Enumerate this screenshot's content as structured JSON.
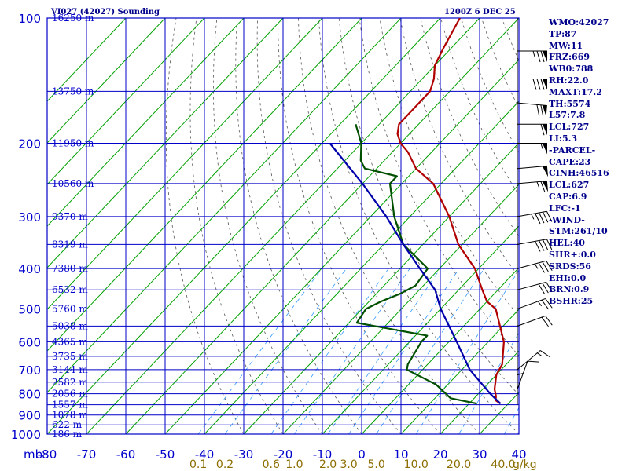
{
  "header": {
    "station": "VI027 (42027) Sounding",
    "time": "1200Z  6 DEC 25"
  },
  "stats": [
    "WMO:42027",
    "TP:87",
    "MW:11",
    "FRZ:669",
    "WB0:788",
    "RH:22.0",
    "MAXT:17.2",
    "TH:5574",
    "L57:7.8",
    "LCL:727",
    "LI:5.3",
    "-PARCEL-",
    "CAPE:23",
    "CINH:46516",
    "LCL:627",
    "CAP:6.9",
    "LFC:-1",
    "-WIND-",
    "STM:261/10",
    "HEL:40",
    "SHR+:0.0",
    "SRDS:56",
    "EHI:0.0",
    "BRN:0.9",
    "BSHR:25"
  ],
  "colors": {
    "grid": "#0000c8",
    "isotherm": "#00a000",
    "temperature": "#b00000",
    "dewpoint": "#005000",
    "parcel": "#0000aa",
    "mixing_ratio": "#3399ff",
    "adiabat": "#555555",
    "text": "#00008b",
    "mixlabel": "#8b6d00"
  },
  "chart_data": {
    "type": "line",
    "title": "VI027 (42027) Sounding",
    "xlabel": "",
    "ylabel": "mb",
    "x_unit": "C",
    "ylog": true,
    "xlim": [
      -80,
      40
    ],
    "ylim": [
      1000,
      100
    ],
    "pressure_ticks": [
      100,
      200,
      300,
      400,
      500,
      600,
      700,
      800,
      900,
      1000
    ],
    "temp_ticks": [
      -80,
      -70,
      -60,
      -50,
      -40,
      -30,
      -20,
      -10,
      0,
      10,
      20,
      30,
      40
    ],
    "y_axis_unit_label": "mb",
    "mixing_ratio_labels": [
      "0.1",
      "0.2",
      "0.6",
      "1.0",
      "2.0",
      "3.0",
      "5.0",
      "10.0",
      "20.0",
      "40.0"
    ],
    "mixing_ratio_unit": "g/kg",
    "height_labels": [
      {
        "p": 100,
        "label": "16250 m"
      },
      {
        "p": 150,
        "label": "13750 m"
      },
      {
        "p": 200,
        "label": "11950 m"
      },
      {
        "p": 250,
        "label": "10560 m"
      },
      {
        "p": 300,
        "label": "9370 m"
      },
      {
        "p": 350,
        "label": "8319 m"
      },
      {
        "p": 400,
        "label": "7380 m"
      },
      {
        "p": 450,
        "label": "6532 m"
      },
      {
        "p": 500,
        "label": "5760 m"
      },
      {
        "p": 550,
        "label": "5038 m"
      },
      {
        "p": 600,
        "label": "4365 m"
      },
      {
        "p": 650,
        "label": "3735 m"
      },
      {
        "p": 700,
        "label": "3144 m"
      },
      {
        "p": 750,
        "label": "2582 m"
      },
      {
        "p": 800,
        "label": "2056 m"
      },
      {
        "p": 850,
        "label": "1557 m"
      },
      {
        "p": 900,
        "label": "1078 m"
      },
      {
        "p": 950,
        "label": "622 m"
      },
      {
        "p": 1000,
        "label": "186 m"
      }
    ],
    "series": [
      {
        "name": "Temperature",
        "points": [
          [
            845,
            28
          ],
          [
            830,
            26
          ],
          [
            810,
            25
          ],
          [
            780,
            23
          ],
          [
            720,
            20
          ],
          [
            680,
            19
          ],
          [
            600,
            14
          ],
          [
            500,
            4
          ],
          [
            480,
            0
          ],
          [
            450,
            -4
          ],
          [
            400,
            -11
          ],
          [
            350,
            -21
          ],
          [
            300,
            -30
          ],
          [
            250,
            -42
          ],
          [
            230,
            -50
          ],
          [
            210,
            -56
          ],
          [
            200,
            -60
          ],
          [
            190,
            -63
          ],
          [
            180,
            -65
          ],
          [
            165,
            -65
          ],
          [
            150,
            -65
          ],
          [
            140,
            -67
          ],
          [
            130,
            -70
          ],
          [
            118,
            -72
          ],
          [
            100,
            -75
          ]
        ]
      },
      {
        "name": "Dewpoint",
        "points": [
          [
            845,
            22
          ],
          [
            820,
            14
          ],
          [
            760,
            7
          ],
          [
            700,
            -4
          ],
          [
            680,
            -5
          ],
          [
            600,
            -7
          ],
          [
            580,
            -7
          ],
          [
            540,
            -28
          ],
          [
            500,
            -29
          ],
          [
            480,
            -27
          ],
          [
            460,
            -24
          ],
          [
            440,
            -22
          ],
          [
            400,
            -23
          ],
          [
            350,
            -35
          ],
          [
            300,
            -44
          ],
          [
            250,
            -53
          ],
          [
            240,
            -53
          ],
          [
            230,
            -63
          ],
          [
            220,
            -66
          ],
          [
            200,
            -70
          ],
          [
            180,
            -76
          ]
        ]
      },
      {
        "name": "Parcel",
        "points": [
          [
            845,
            28
          ],
          [
            800,
            23
          ],
          [
            700,
            12
          ],
          [
            600,
            2
          ],
          [
            500,
            -10
          ],
          [
            450,
            -16
          ],
          [
            400,
            -25
          ],
          [
            350,
            -35
          ],
          [
            300,
            -46
          ],
          [
            250,
            -60
          ],
          [
            200,
            -78
          ]
        ]
      }
    ],
    "wind_barbs": [
      {
        "p": 120,
        "dir": 270,
        "speed": 75
      },
      {
        "p": 140,
        "dir": 270,
        "speed": 80
      },
      {
        "p": 160,
        "dir": 275,
        "speed": 70
      },
      {
        "p": 180,
        "dir": 270,
        "speed": 60
      },
      {
        "p": 200,
        "dir": 270,
        "speed": 55
      },
      {
        "p": 230,
        "dir": 265,
        "speed": 50
      },
      {
        "p": 250,
        "dir": 265,
        "speed": 65
      },
      {
        "p": 300,
        "dir": 260,
        "speed": 45
      },
      {
        "p": 350,
        "dir": 260,
        "speed": 40
      },
      {
        "p": 400,
        "dir": 255,
        "speed": 35
      },
      {
        "p": 450,
        "dir": 255,
        "speed": 30
      },
      {
        "p": 500,
        "dir": 250,
        "speed": 25
      },
      {
        "p": 550,
        "dir": 250,
        "speed": 20
      },
      {
        "p": 700,
        "dir": 230,
        "speed": 15
      },
      {
        "p": 780,
        "dir": 200,
        "speed": 10
      },
      {
        "p": 850,
        "dir": 180,
        "speed": 5
      }
    ]
  }
}
